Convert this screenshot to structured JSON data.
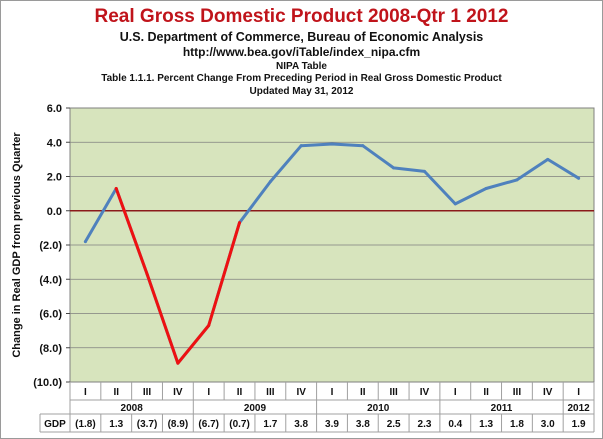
{
  "chart_data": {
    "type": "line",
    "title": "Real Gross Domestic Product 2008-Qtr 1 2012",
    "subtitle_lines": [
      "U.S. Department of Commerce, Bureau of Economic Analysis",
      "http://www.bea.gov/iTable/index_nipa.cfm",
      "NIPA Table",
      "Table 1.1.1. Percent Change From Preceding Period in Real Gross Domestic Product",
      "Updated May 31, 2012"
    ],
    "ylabel": "Change in Real GDP from previous Quarter",
    "ylim": [
      -10,
      6
    ],
    "yticks": [
      {
        "v": 6,
        "label": "6.0"
      },
      {
        "v": 4,
        "label": "4.0"
      },
      {
        "v": 2,
        "label": "2.0"
      },
      {
        "v": 0,
        "label": "0.0"
      },
      {
        "v": -2,
        "label": "(2.0)"
      },
      {
        "v": -4,
        "label": "(4.0)"
      },
      {
        "v": -6,
        "label": "(6.0)"
      },
      {
        "v": -8,
        "label": "(8.0)"
      },
      {
        "v": -10,
        "label": "(10.0)"
      }
    ],
    "quarters": [
      "I",
      "II",
      "III",
      "IV",
      "I",
      "II",
      "III",
      "IV",
      "I",
      "II",
      "III",
      "IV",
      "I",
      "II",
      "III",
      "IV",
      "I"
    ],
    "years": [
      {
        "label": "2008",
        "start": 0,
        "end": 3
      },
      {
        "label": "2009",
        "start": 4,
        "end": 7
      },
      {
        "label": "2010",
        "start": 8,
        "end": 11
      },
      {
        "label": "2011",
        "start": 12,
        "end": 15
      },
      {
        "label": "2012",
        "start": 16,
        "end": 16
      }
    ],
    "values": [
      -1.8,
      1.3,
      -3.7,
      -8.9,
      -6.7,
      -0.7,
      1.7,
      3.8,
      3.9,
      3.8,
      2.5,
      2.3,
      0.4,
      1.3,
      1.8,
      3.0,
      1.9
    ],
    "table_row_label": "GDP",
    "value_labels": [
      "(1.8)",
      "1.3",
      "(3.7)",
      "(8.9)",
      "(6.7)",
      "(0.7)",
      "1.7",
      "3.8",
      "3.9",
      "3.8",
      "2.5",
      "2.3",
      "0.4",
      "1.3",
      "1.8",
      "3.0",
      "1.9"
    ],
    "highlight_range": [
      1,
      5
    ],
    "colors": {
      "line": "#4f81bd",
      "highlight": "#ee1111",
      "plot_bg": "#d7e4bd",
      "zero_line": "#8b1a1a",
      "grid": "#7f7f7f",
      "title": "#c0141b"
    },
    "grid": true,
    "legend": "none"
  }
}
